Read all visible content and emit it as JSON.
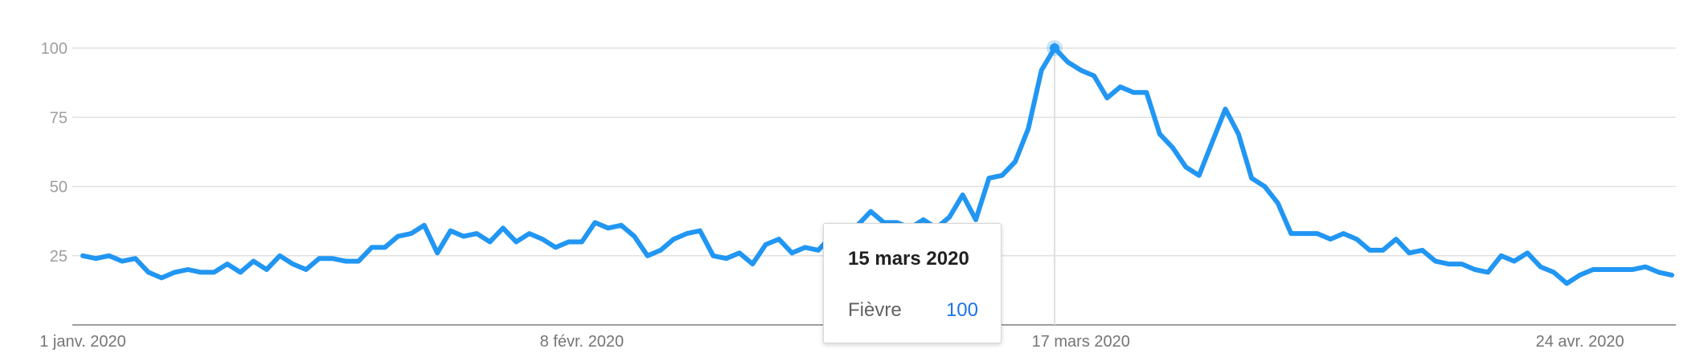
{
  "chart_data": {
    "type": "line",
    "series": [
      {
        "name": "Fièvre",
        "color": "#2196f3",
        "values": [
          25,
          24,
          25,
          23,
          24,
          19,
          17,
          19,
          20,
          19,
          19,
          22,
          19,
          23,
          20,
          25,
          22,
          20,
          24,
          24,
          23,
          23,
          28,
          28,
          32,
          33,
          36,
          26,
          34,
          32,
          33,
          30,
          35,
          30,
          33,
          31,
          28,
          30,
          30,
          37,
          35,
          36,
          32,
          25,
          27,
          31,
          33,
          34,
          25,
          24,
          26,
          22,
          29,
          31,
          26,
          28,
          27,
          32,
          34,
          36,
          41,
          37,
          37,
          35,
          38,
          35,
          39,
          47,
          38,
          53,
          54,
          59,
          71,
          92,
          100,
          95,
          92,
          90,
          82,
          86,
          84,
          84,
          69,
          64,
          57,
          54,
          66,
          78,
          69,
          53,
          50,
          44,
          33,
          33,
          33,
          31,
          33,
          31,
          27,
          27,
          31,
          26,
          27,
          23,
          22,
          22,
          20,
          19,
          25,
          23,
          26,
          21,
          19,
          15,
          18,
          20,
          20,
          20,
          20,
          21,
          19,
          18
        ]
      }
    ],
    "x_start": "1 janv. 2020",
    "x_end": "1 mai 2020",
    "x_tick_labels": [
      "1 janv. 2020",
      "8 févr. 2020",
      "17 mars 2020",
      "24 avr. 2020"
    ],
    "y_ticks": [
      25,
      50,
      75,
      100
    ],
    "ylim": [
      0,
      100
    ],
    "grid": true,
    "tooltip": {
      "date": "15 mars 2020",
      "series": "Fièvre",
      "value": "100"
    }
  }
}
